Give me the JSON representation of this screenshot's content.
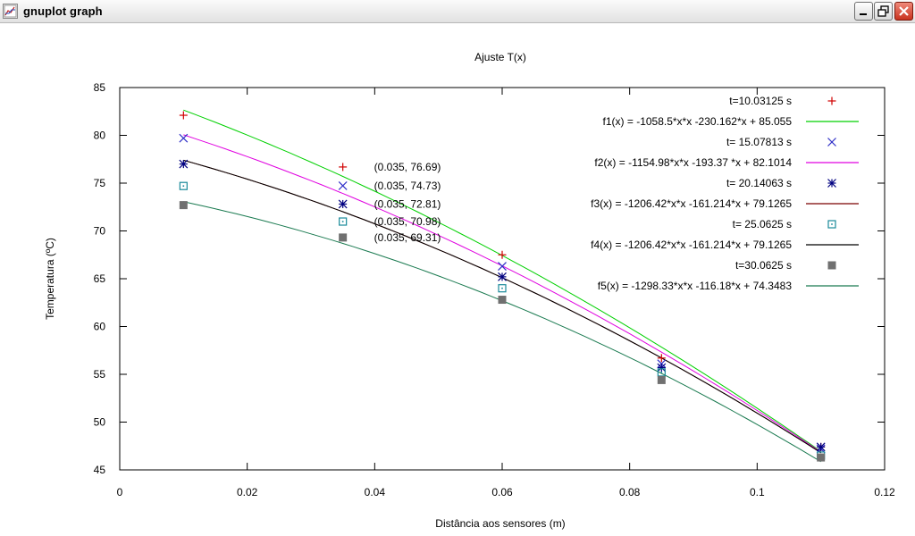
{
  "window": {
    "title": "gnuplot graph",
    "icon": "gnuplot-graph-icon",
    "controls": {
      "minimize": "minimize-icon",
      "maximize": "restore-icon",
      "close": "close-icon"
    }
  },
  "chart_data": {
    "type": "scatter",
    "title": "Ajuste T(x)",
    "xlabel": "Distância aos sensores (m)",
    "ylabel": "Temperatura (ºC)",
    "xlim": [
      0,
      0.12
    ],
    "ylim": [
      45,
      85
    ],
    "xticks": [
      "0",
      "0.02",
      "0.04",
      "0.06",
      "0.08",
      "0.1",
      "0.12"
    ],
    "yticks": [
      "45",
      "50",
      "55",
      "60",
      "65",
      "70",
      "75",
      "80",
      "85"
    ],
    "grid": false,
    "legend_position": "top-right",
    "x": [
      0.01,
      0.035,
      0.06,
      0.085,
      0.11
    ],
    "series": [
      {
        "name": "t=10.03125 s",
        "marker": "plus",
        "color": "#d00000",
        "values": [
          82.1,
          76.69,
          67.5,
          56.7,
          47.4
        ]
      },
      {
        "name": "t= 15.07813 s",
        "marker": "cross",
        "color": "#3030c8",
        "values": [
          79.7,
          74.73,
          66.3,
          56.1,
          47.2
        ]
      },
      {
        "name": "t= 20.14063 s",
        "marker": "star",
        "color": "#000080",
        "values": [
          77.0,
          72.81,
          65.2,
          55.7,
          47.4
        ]
      },
      {
        "name": "t= 25.0625 s",
        "marker": "square-dot",
        "color": "#1a8a9a",
        "values": [
          74.7,
          70.98,
          64.0,
          55.2,
          46.5
        ]
      },
      {
        "name": "t=30.0625 s",
        "marker": "filled-square",
        "color": "#707070",
        "values": [
          72.7,
          69.31,
          62.8,
          54.4,
          46.3
        ]
      }
    ],
    "fits": [
      {
        "name": "f1(x) = -1058.5*x*x -230.162*x + 85.055",
        "color": "#00d000",
        "a": -1058.5,
        "b": -230.162,
        "c": 85.055
      },
      {
        "name": "f2(x) = -1154.98*x*x -193.37 *x + 82.1014",
        "color": "#e000e0",
        "a": -1154.98,
        "b": -193.37,
        "c": 82.1014
      },
      {
        "name": "f3(x) = -1206.42*x*x  -161.214*x + 79.1265",
        "color": "#7a0000",
        "a": -1206.42,
        "b": -161.214,
        "c": 79.1265
      },
      {
        "name": "f4(x) = -1206.42*x*x  -161.214*x + 79.1265",
        "color": "#000000",
        "a": -1206.42,
        "b": -161.214,
        "c": 79.1265
      },
      {
        "name": "f5(x) = -1298.33*x*x  -116.18*x + 74.3483",
        "color": "#1a7a50",
        "a": -1298.33,
        "b": -116.18,
        "c": 74.3483
      }
    ],
    "annotations": [
      "(0.035, 76.69)",
      "(0.035, 74.73)",
      "(0.035, 72.81)",
      "(0.035, 70.98)",
      "(0.035, 69.31)"
    ]
  }
}
